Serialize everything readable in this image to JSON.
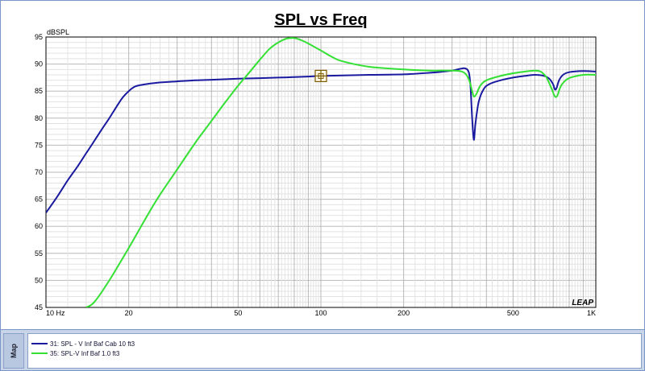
{
  "chart_data": {
    "type": "line",
    "title": "SPL vs Freq",
    "ylabel": "dBSPL",
    "xscale": "log",
    "xlim": [
      10,
      1000
    ],
    "ylim": [
      45,
      95
    ],
    "yticks": [
      45,
      50,
      55,
      60,
      65,
      70,
      75,
      80,
      85,
      90,
      95
    ],
    "xtick_labels": [
      {
        "value": 10,
        "label": "10  Hz"
      },
      {
        "value": 20,
        "label": "20"
      },
      {
        "value": 50,
        "label": "50"
      },
      {
        "value": 100,
        "label": "100"
      },
      {
        "value": 200,
        "label": "200"
      },
      {
        "value": 500,
        "label": "500"
      },
      {
        "value": 1000,
        "label": "1K"
      }
    ],
    "grid": true,
    "watermark": "LEAP",
    "series": [
      {
        "name": "31: SPL - V Inf Baf Cab 10 ft3",
        "color": "#1a1aa0",
        "x": [
          10,
          11,
          12,
          13,
          14,
          15,
          16,
          17,
          18,
          19,
          20,
          21,
          22,
          24,
          26,
          28,
          30,
          35,
          40,
          50,
          60,
          70,
          80,
          90,
          100,
          120,
          150,
          200,
          250,
          300,
          320,
          335,
          345,
          350,
          355,
          360,
          365,
          375,
          390,
          410,
          450,
          500,
          550,
          600,
          650,
          680,
          700,
          710,
          720,
          735,
          760,
          800,
          900,
          1000
        ],
        "y": [
          62.5,
          65.5,
          68.5,
          71,
          73.5,
          75.8,
          78,
          80,
          82,
          83.8,
          85,
          85.8,
          86.1,
          86.4,
          86.6,
          86.7,
          86.8,
          87,
          87.1,
          87.3,
          87.4,
          87.5,
          87.6,
          87.7,
          87.8,
          87.9,
          88,
          88.1,
          88.4,
          88.8,
          89.1,
          89.2,
          88.5,
          86,
          80,
          76,
          79,
          83,
          85.3,
          86.3,
          87,
          87.5,
          87.8,
          88,
          87.8,
          87.2,
          86.2,
          85.3,
          85.6,
          87,
          88,
          88.5,
          88.7,
          88.6
        ]
      },
      {
        "name": "35: SPL-V Inf Baf 1.0 ft3",
        "color": "#33e033",
        "x": [
          14,
          15,
          17,
          20,
          25,
          30,
          35,
          40,
          45,
          50,
          55,
          60,
          65,
          70,
          75,
          80,
          85,
          90,
          100,
          110,
          120,
          150,
          200,
          250,
          300,
          330,
          345,
          355,
          360,
          368,
          380,
          400,
          450,
          500,
          550,
          600,
          630,
          660,
          690,
          710,
          725,
          740,
          760,
          800,
          900,
          1000
        ],
        "y": [
          45,
          46,
          50,
          56,
          64.5,
          70.5,
          75.5,
          79.5,
          83,
          86,
          88.5,
          90.8,
          92.8,
          94,
          94.7,
          94.8,
          94.4,
          93.8,
          92.5,
          91.3,
          90.5,
          89.5,
          89,
          88.8,
          88.8,
          88.5,
          87.2,
          85,
          84,
          84.5,
          86,
          87,
          87.8,
          88.3,
          88.6,
          88.8,
          88.6,
          87.6,
          85.5,
          84,
          84.2,
          85.5,
          86.5,
          87.4,
          88,
          88
        ]
      }
    ]
  },
  "sidebar": {
    "map_label": "Map"
  }
}
